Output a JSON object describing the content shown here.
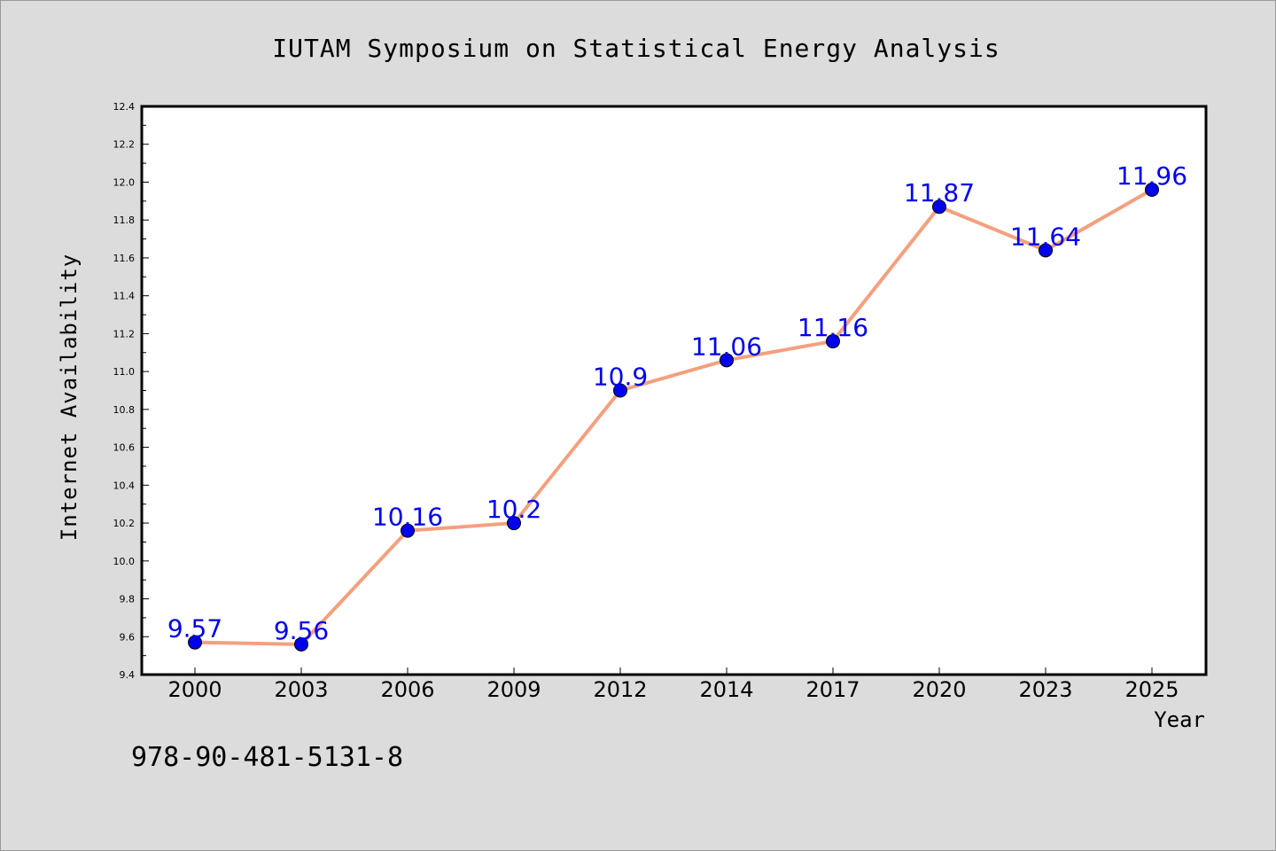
{
  "chart_data": {
    "type": "line",
    "title": "IUTAM Symposium on Statistical Energy Analysis",
    "xlabel": "Year",
    "ylabel": "Internet Availability",
    "categories": [
      "2000",
      "2003",
      "2006",
      "2009",
      "2012",
      "2014",
      "2017",
      "2020",
      "2023",
      "2025"
    ],
    "series": [
      {
        "values": [
          9.57,
          9.56,
          10.16,
          10.2,
          10.9,
          11.06,
          11.16,
          11.87,
          11.64,
          11.96
        ],
        "labels": [
          "9.57",
          "9.56",
          "10.16",
          "10.2",
          "10.9",
          "11.06",
          "11.16",
          "11.87",
          "11.64",
          "11.96"
        ]
      }
    ],
    "ylim": [
      9.4,
      12.4
    ],
    "yticks": [
      9.4,
      9.6,
      9.8,
      10.0,
      10.2,
      10.4,
      10.6,
      10.8,
      11.0,
      11.2,
      11.4,
      11.6,
      11.8,
      12.0,
      12.2,
      12.4
    ],
    "ytick_labels": [
      "9.4",
      "9.6",
      "9.8",
      "10.0",
      "10.2",
      "10.4",
      "10.6",
      "10.8",
      "11.0",
      "11.2",
      "11.4",
      "11.6",
      "11.8",
      "12.0",
      "12.2",
      "12.4"
    ],
    "grid": false,
    "line_color": "#f4a07e",
    "marker_color": "#0000ee",
    "label_color": "#0000ee",
    "plot_background": "#ffffff",
    "figure_background": "#dcdcdc"
  },
  "footer": {
    "isbn": "978-90-481-5131-8"
  }
}
